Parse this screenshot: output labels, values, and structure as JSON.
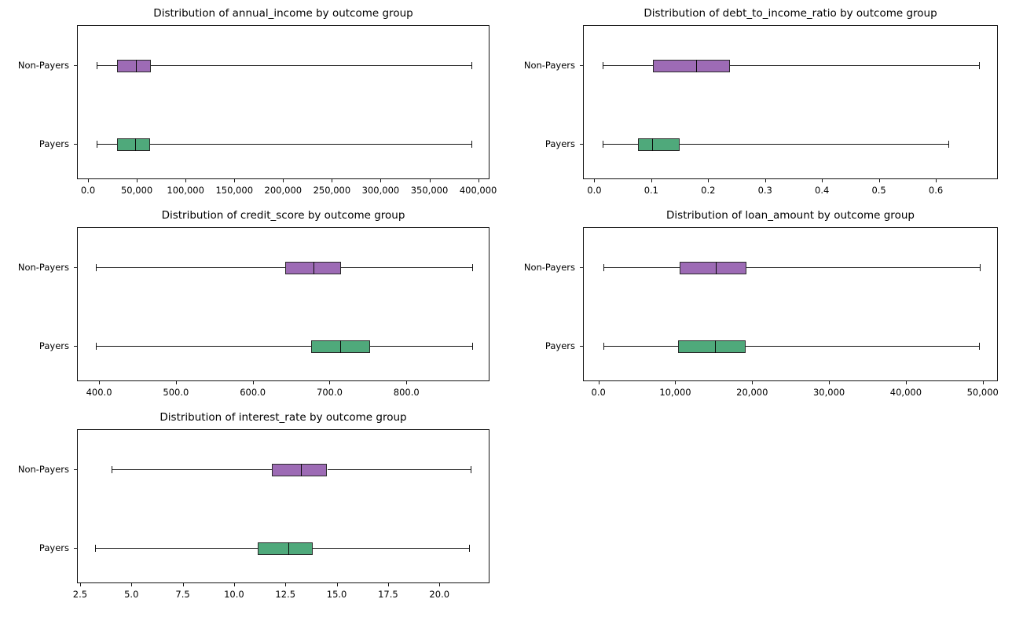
{
  "figure": {
    "background": "#ffffff",
    "group_colors": {
      "non_payers": "#9d6bb5",
      "payers": "#4fa97b"
    },
    "edge_color": "#2a2a2a"
  },
  "chart_data": [
    {
      "type": "boxplot-horizontal",
      "title": "Distribution of annual_income by outcome group",
      "groups": [
        "Non-Payers",
        "Payers"
      ],
      "xlim": [
        -11300,
        411600
      ],
      "tick_values": [
        0,
        50000,
        100000,
        150000,
        200000,
        250000,
        300000,
        350000,
        400000
      ],
      "tick_labels": [
        "0.0",
        "50,000",
        "100,000",
        "150,000",
        "200,000",
        "250,000",
        "300,000",
        "350,000",
        "400,000"
      ],
      "series": [
        {
          "name": "Non-Payers",
          "color": "#9d6bb5",
          "min": 7900,
          "q1": 29300,
          "median": 48600,
          "q3": 63700,
          "max": 392400
        },
        {
          "name": "Payers",
          "color": "#4fa97b",
          "min": 7900,
          "q1": 29000,
          "median": 47900,
          "q3": 63100,
          "max": 392000
        }
      ]
    },
    {
      "type": "boxplot-horizontal",
      "title": "Distribution of debt_to_income_ratio by outcome group",
      "groups": [
        "Non-Payers",
        "Payers"
      ],
      "xlim": [
        -0.0199,
        0.709
      ],
      "tick_values": [
        0.0,
        0.1,
        0.2,
        0.3,
        0.4,
        0.5,
        0.6
      ],
      "tick_labels": [
        "0.0",
        "0.1",
        "0.2",
        "0.3",
        "0.4",
        "0.5",
        "0.6"
      ],
      "series": [
        {
          "name": "Non-Payers",
          "color": "#9d6bb5",
          "min": 0.013,
          "q1": 0.101,
          "median": 0.178,
          "q3": 0.237,
          "max": 0.675
        },
        {
          "name": "Payers",
          "color": "#4fa97b",
          "min": 0.013,
          "q1": 0.076,
          "median": 0.1,
          "q3": 0.148,
          "max": 0.62
        }
      ]
    },
    {
      "type": "boxplot-horizontal",
      "title": "Distribution of credit_score by outcome group",
      "groups": [
        "Non-Payers",
        "Payers"
      ],
      "xlim": [
        371.3,
        908.1
      ],
      "tick_values": [
        400,
        500,
        600,
        700,
        800
      ],
      "tick_labels": [
        "400.0",
        "500.0",
        "600.0",
        "700.0",
        "800.0"
      ],
      "series": [
        {
          "name": "Non-Payers",
          "color": "#9d6bb5",
          "min": 395,
          "q1": 641,
          "median": 678,
          "q3": 714,
          "max": 885
        },
        {
          "name": "Payers",
          "color": "#4fa97b",
          "min": 395,
          "q1": 675,
          "median": 713,
          "q3": 752,
          "max": 885
        }
      ]
    },
    {
      "type": "boxplot-horizontal",
      "title": "Distribution of loan_amount by outcome group",
      "groups": [
        "Non-Payers",
        "Payers"
      ],
      "xlim": [
        -2010,
        51970
      ],
      "tick_values": [
        0,
        10000,
        20000,
        30000,
        40000,
        50000
      ],
      "tick_labels": [
        "0.0",
        "10,000",
        "20,000",
        "30,000",
        "40,000",
        "50,000"
      ],
      "series": [
        {
          "name": "Non-Payers",
          "color": "#9d6bb5",
          "min": 500,
          "q1": 10500,
          "median": 15200,
          "q3": 19200,
          "max": 49500
        },
        {
          "name": "Payers",
          "color": "#4fa97b",
          "min": 500,
          "q1": 10300,
          "median": 15100,
          "q3": 19000,
          "max": 49400
        }
      ]
    },
    {
      "type": "boxplot-horizontal",
      "title": "Distribution of interest_rate by outcome group",
      "groups": [
        "Non-Payers",
        "Payers"
      ],
      "xlim": [
        2.35,
        22.44
      ],
      "tick_values": [
        2.5,
        5.0,
        7.5,
        10.0,
        12.5,
        15.0,
        17.5,
        20.0
      ],
      "tick_labels": [
        "2.5",
        "5.0",
        "7.5",
        "10.0",
        "12.5",
        "15.0",
        "17.5",
        "20.0"
      ],
      "series": [
        {
          "name": "Non-Payers",
          "color": "#9d6bb5",
          "min": 4.0,
          "q1": 11.8,
          "median": 13.2,
          "q3": 14.5,
          "max": 21.5
        },
        {
          "name": "Payers",
          "color": "#4fa97b",
          "min": 3.2,
          "q1": 11.1,
          "median": 12.6,
          "q3": 13.8,
          "max": 21.4
        }
      ]
    }
  ]
}
